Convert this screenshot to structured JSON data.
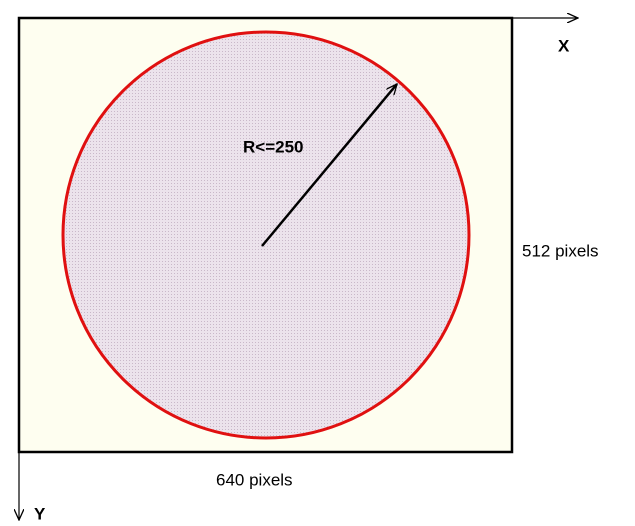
{
  "labels": {
    "x_axis": "X",
    "y_axis": "Y",
    "radius": "R<=250",
    "height": "512 pixels",
    "width": "640 pixels"
  }
}
